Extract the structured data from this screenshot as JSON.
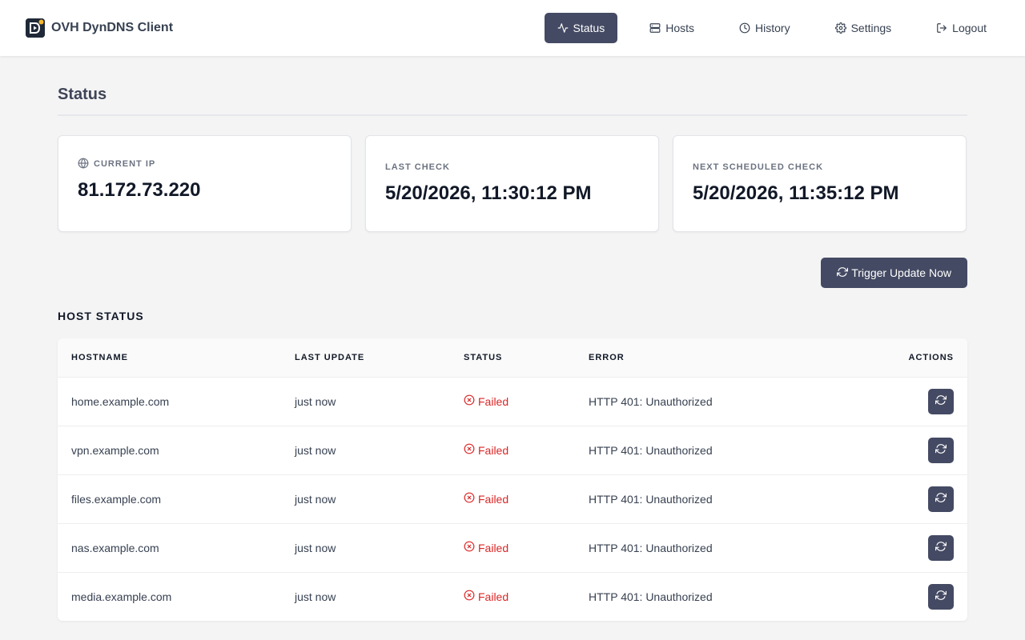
{
  "app": {
    "title": "OVH DynDNS Client",
    "accent": "#444a63",
    "error_color": "#dc2626"
  },
  "nav": {
    "items": [
      {
        "label": "Status",
        "icon": "activity-icon",
        "active": true
      },
      {
        "label": "Hosts",
        "icon": "server-icon",
        "active": false
      },
      {
        "label": "History",
        "icon": "clock-icon",
        "active": false
      },
      {
        "label": "Settings",
        "icon": "gear-icon",
        "active": false
      },
      {
        "label": "Logout",
        "icon": "logout-icon",
        "active": false
      }
    ]
  },
  "page": {
    "title": "Status"
  },
  "cards": {
    "current_ip": {
      "label": "CURRENT IP",
      "value": "81.172.73.220",
      "icon": "globe-icon"
    },
    "last_check": {
      "label": "LAST CHECK",
      "value": "5/20/2026, 11:30:12 PM"
    },
    "next_check": {
      "label": "NEXT SCHEDULED CHECK",
      "value": "5/20/2026, 11:35:12 PM"
    }
  },
  "trigger": {
    "label": "Trigger Update Now",
    "icon": "refresh-icon"
  },
  "host_status": {
    "title": "HOST STATUS",
    "columns": [
      "HOSTNAME",
      "LAST UPDATE",
      "STATUS",
      "ERROR",
      "ACTIONS"
    ],
    "rows": [
      {
        "hostname": "home.example.com",
        "last_update": "just now",
        "status": "Failed",
        "error": "HTTP 401: Unauthorized"
      },
      {
        "hostname": "vpn.example.com",
        "last_update": "just now",
        "status": "Failed",
        "error": "HTTP 401: Unauthorized"
      },
      {
        "hostname": "files.example.com",
        "last_update": "just now",
        "status": "Failed",
        "error": "HTTP 401: Unauthorized"
      },
      {
        "hostname": "nas.example.com",
        "last_update": "just now",
        "status": "Failed",
        "error": "HTTP 401: Unauthorized"
      },
      {
        "hostname": "media.example.com",
        "last_update": "just now",
        "status": "Failed",
        "error": "HTTP 401: Unauthorized"
      }
    ]
  }
}
